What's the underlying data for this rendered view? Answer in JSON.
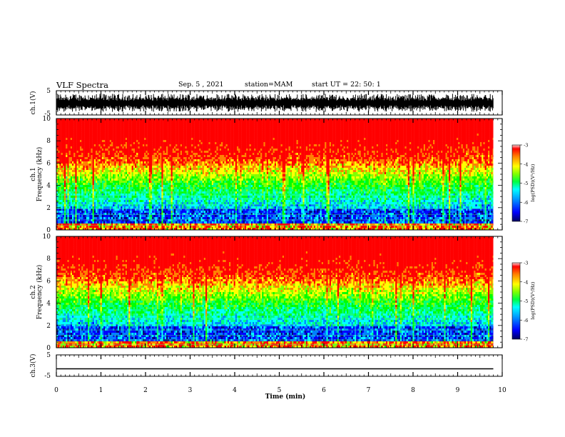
{
  "header": {
    "title": "VLF Spectra",
    "date": "Sep. 5 , 2021",
    "station": "station=MAM",
    "start": "start  UT =   22: 50: 1"
  },
  "chart_data": [
    {
      "type": "line",
      "panel": "ch1-waveform",
      "ylabel": "ch.1(V)",
      "ylim": [
        -5,
        5
      ],
      "yticks": [
        "5",
        "-5"
      ],
      "xlim": [
        0,
        10
      ],
      "signal": "dense noise waveform spanning roughly -3.5 to 3.5 V"
    },
    {
      "type": "heatmap",
      "panel": "ch1-spectrogram",
      "ylabel_line1": "ch.1",
      "ylabel_line2": "Frequency (kHz)",
      "ylim": [
        0,
        10
      ],
      "yticks": [
        "0",
        "2",
        "4",
        "6",
        "8",
        "10"
      ],
      "xlim": [
        0,
        10
      ],
      "colorbar": {
        "label": "log(PSD)(V²/Hz)",
        "range": [
          -7,
          -3
        ],
        "ticks": [
          "-3",
          "-4",
          "-5",
          "-6",
          "-7"
        ]
      }
    },
    {
      "type": "heatmap",
      "panel": "ch2-spectrogram",
      "ylabel_line1": "ch.2",
      "ylabel_line2": "Frequency (kHz)",
      "ylim": [
        0,
        10
      ],
      "yticks": [
        "0",
        "2",
        "4",
        "6",
        "8",
        "10"
      ],
      "xlim": [
        0,
        10
      ],
      "colorbar": {
        "label": "log(PSD)(V²/Hz)",
        "range": [
          -7,
          -3
        ],
        "ticks": [
          "-3",
          "-4",
          "-5",
          "-6",
          "-7"
        ]
      }
    },
    {
      "type": "line",
      "panel": "ch3-waveform",
      "ylabel": "ch.3(V)",
      "ylim": [
        -5,
        5
      ],
      "yticks": [
        "5",
        "-5"
      ],
      "xlim": [
        0,
        10
      ],
      "x": [
        0,
        9.8
      ],
      "y": [
        -1.5,
        -1.5
      ]
    }
  ],
  "xaxis": {
    "label": "Time  (min)",
    "ticks": [
      "0",
      "1",
      "2",
      "3",
      "4",
      "5",
      "6",
      "7",
      "8",
      "9",
      "10"
    ],
    "data_end": 9.8
  },
  "colors": {
    "scale": [
      "#000080",
      "#0000ff",
      "#0080ff",
      "#00ffff",
      "#00ff80",
      "#00ff00",
      "#80ff00",
      "#ffff00",
      "#ff8000",
      "#ff0000",
      "#ff0000"
    ]
  }
}
